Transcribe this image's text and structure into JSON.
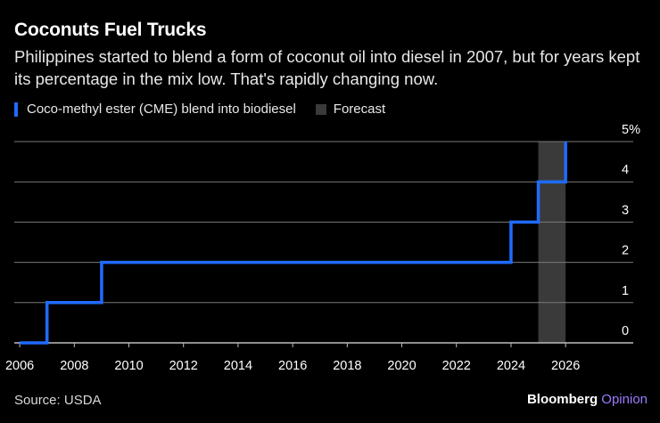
{
  "header": {
    "title": "Coconuts Fuel Trucks",
    "subtitle": "Philippines started to blend a form of coconut oil into diesel in 2007, but for years kept its percentage in the mix low. That's rapidly changing now."
  },
  "legend": {
    "series_label": "Coco-methyl ester (CME) blend into biodiesel",
    "forecast_label": "Forecast"
  },
  "colors": {
    "series": "#1f6bff",
    "forecast": "#3a3a3a",
    "grid": "#7a7a7a",
    "axis": "#bdbdbd"
  },
  "footer": {
    "source": "Source: USDA",
    "brand_main": "Bloomberg",
    "brand_sub": "Opinion"
  },
  "chart_data": {
    "type": "line",
    "interpolation": "step-after",
    "title": "Coconuts Fuel Trucks",
    "xlabel": "",
    "ylabel": "",
    "xlim": [
      2005.8,
      2027.4
    ],
    "ylim": [
      0,
      5
    ],
    "grid": true,
    "legend_position": "top-left",
    "y_axis_side": "right",
    "x_ticks": [
      2006,
      2008,
      2010,
      2012,
      2014,
      2016,
      2018,
      2020,
      2022,
      2024,
      2026
    ],
    "y_ticks": [
      0,
      1,
      2,
      3,
      4,
      5
    ],
    "y_tick_labels": [
      "0",
      "1",
      "2",
      "3",
      "4",
      "5%"
    ],
    "forecast_range": [
      2025,
      2026
    ],
    "series": [
      {
        "name": "Coco-methyl ester (CME) blend into biodiesel",
        "x": [
          2006,
          2007,
          2009,
          2024,
          2025,
          2026
        ],
        "y": [
          0,
          1,
          2,
          3,
          4,
          5
        ]
      }
    ]
  }
}
